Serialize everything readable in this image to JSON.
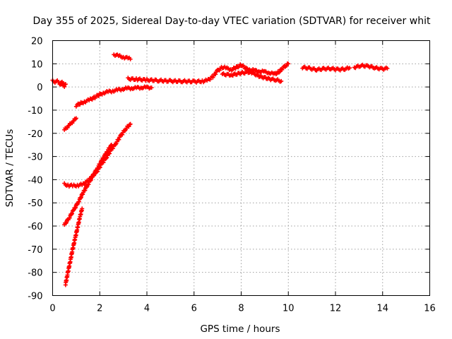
{
  "chart_data": {
    "type": "scatter",
    "title": "Day 355 of 2025, Sidereal Day-to-day VTEC variation (SDTVAR) for receiver whit",
    "xlabel": "GPS time / hours",
    "ylabel": "SDTVAR / TECUs",
    "xlim": [
      0,
      16
    ],
    "ylim": [
      -90,
      20
    ],
    "x_ticks": [
      0,
      2,
      4,
      6,
      8,
      10,
      12,
      14,
      16
    ],
    "y_ticks": [
      20,
      10,
      0,
      -10,
      -20,
      -30,
      -40,
      -50,
      -60,
      -70,
      -80,
      -90
    ],
    "grid": true,
    "marker": "plus",
    "color": "#ff0000",
    "series": [
      {
        "points": [
          [
            0.0,
            2.5
          ],
          [
            0.1,
            2.3
          ],
          [
            0.2,
            2.4
          ],
          [
            0.3,
            2.0
          ],
          [
            0.4,
            1.8
          ],
          [
            0.5,
            1.5
          ],
          [
            0.55,
            0.8
          ],
          [
            0.5,
            0.5
          ],
          [
            0.3,
            1.2
          ]
        ]
      },
      {
        "points": [
          [
            0.5,
            -18.5
          ],
          [
            0.6,
            -17.5
          ],
          [
            0.7,
            -16.5
          ],
          [
            0.8,
            -15.5
          ],
          [
            0.9,
            -14.5
          ],
          [
            1.0,
            -13.5
          ]
        ]
      },
      {
        "points": [
          [
            1.0,
            -8.0
          ],
          [
            1.2,
            -7.0
          ],
          [
            1.4,
            -6.2
          ],
          [
            1.6,
            -5.4
          ],
          [
            1.8,
            -4.4
          ],
          [
            2.0,
            -3.2
          ],
          [
            2.2,
            -2.4
          ],
          [
            2.4,
            -2.0
          ],
          [
            2.6,
            -1.6
          ],
          [
            2.8,
            -1.2
          ],
          [
            3.0,
            -0.8
          ],
          [
            3.2,
            -0.6
          ],
          [
            3.4,
            -0.5
          ],
          [
            3.6,
            -0.4
          ],
          [
            3.8,
            -0.2
          ],
          [
            4.0,
            -0.2
          ],
          [
            4.2,
            -0.3
          ]
        ]
      },
      {
        "points": [
          [
            2.6,
            14.0
          ],
          [
            2.8,
            13.4
          ],
          [
            3.0,
            12.9
          ],
          [
            3.2,
            12.4
          ],
          [
            3.3,
            12.0
          ]
        ]
      },
      {
        "points": [
          [
            3.2,
            3.5
          ],
          [
            3.6,
            3.3
          ],
          [
            4.0,
            3.0
          ],
          [
            4.5,
            2.8
          ],
          [
            5.0,
            2.5
          ],
          [
            5.5,
            2.5
          ],
          [
            6.0,
            2.3
          ],
          [
            6.4,
            2.5
          ],
          [
            6.6,
            3.0
          ],
          [
            6.8,
            4.5
          ],
          [
            7.0,
            7.0
          ],
          [
            7.2,
            8.5
          ],
          [
            7.4,
            8.0
          ],
          [
            7.6,
            7.5
          ],
          [
            7.8,
            8.5
          ],
          [
            8.0,
            9.5
          ],
          [
            8.2,
            8.0
          ],
          [
            8.4,
            7.5
          ],
          [
            8.6,
            7.0
          ],
          [
            8.8,
            6.8
          ],
          [
            9.0,
            6.5
          ],
          [
            9.2,
            6.2
          ],
          [
            9.4,
            5.5
          ],
          [
            9.6,
            6.5
          ],
          [
            9.8,
            8.5
          ],
          [
            10.0,
            10.0
          ]
        ]
      },
      {
        "points": [
          [
            7.2,
            5.5
          ],
          [
            7.6,
            5.2
          ],
          [
            8.0,
            6.0
          ],
          [
            8.4,
            6.5
          ],
          [
            8.8,
            4.5
          ],
          [
            9.2,
            3.5
          ],
          [
            9.5,
            3.0
          ],
          [
            9.7,
            2.5
          ]
        ]
      },
      {
        "points": [
          [
            10.6,
            8.5
          ],
          [
            10.9,
            8.0
          ],
          [
            11.2,
            7.5
          ],
          [
            11.5,
            7.8
          ],
          [
            11.8,
            8.0
          ],
          [
            12.1,
            7.5
          ],
          [
            12.4,
            7.8
          ],
          [
            12.6,
            8.2
          ]
        ]
      },
      {
        "points": [
          [
            12.8,
            8.5
          ],
          [
            13.1,
            9.2
          ],
          [
            13.4,
            9.0
          ],
          [
            13.7,
            8.2
          ],
          [
            14.0,
            7.8
          ],
          [
            14.2,
            8.0
          ]
        ]
      },
      {
        "points": [
          [
            0.5,
            -42.0
          ],
          [
            0.7,
            -42.5
          ],
          [
            0.9,
            -42.6
          ],
          [
            1.1,
            -42.4
          ],
          [
            1.3,
            -42.0
          ],
          [
            1.5,
            -40.5
          ],
          [
            1.7,
            -38.5
          ],
          [
            1.9,
            -36.0
          ],
          [
            2.1,
            -33.0
          ],
          [
            2.3,
            -30.0
          ],
          [
            2.5,
            -27.0
          ],
          [
            2.7,
            -24.0
          ],
          [
            2.9,
            -21.0
          ],
          [
            3.1,
            -18.0
          ],
          [
            3.3,
            -16.0
          ]
        ]
      },
      {
        "points": [
          [
            0.5,
            -59.5
          ],
          [
            0.7,
            -56.5
          ],
          [
            0.9,
            -53.0
          ],
          [
            1.1,
            -49.5
          ],
          [
            1.3,
            -45.5
          ],
          [
            1.5,
            -42.0
          ],
          [
            1.7,
            -38.5
          ],
          [
            1.9,
            -35.0
          ],
          [
            2.1,
            -31.5
          ],
          [
            2.3,
            -28.0
          ],
          [
            2.5,
            -25.0
          ]
        ]
      },
      {
        "points": [
          [
            0.55,
            -85.0
          ],
          [
            0.65,
            -80.0
          ],
          [
            0.75,
            -75.0
          ],
          [
            0.85,
            -70.0
          ],
          [
            0.95,
            -65.5
          ],
          [
            1.05,
            -61.0
          ],
          [
            1.15,
            -56.5
          ],
          [
            1.25,
            -52.5
          ]
        ]
      }
    ]
  }
}
